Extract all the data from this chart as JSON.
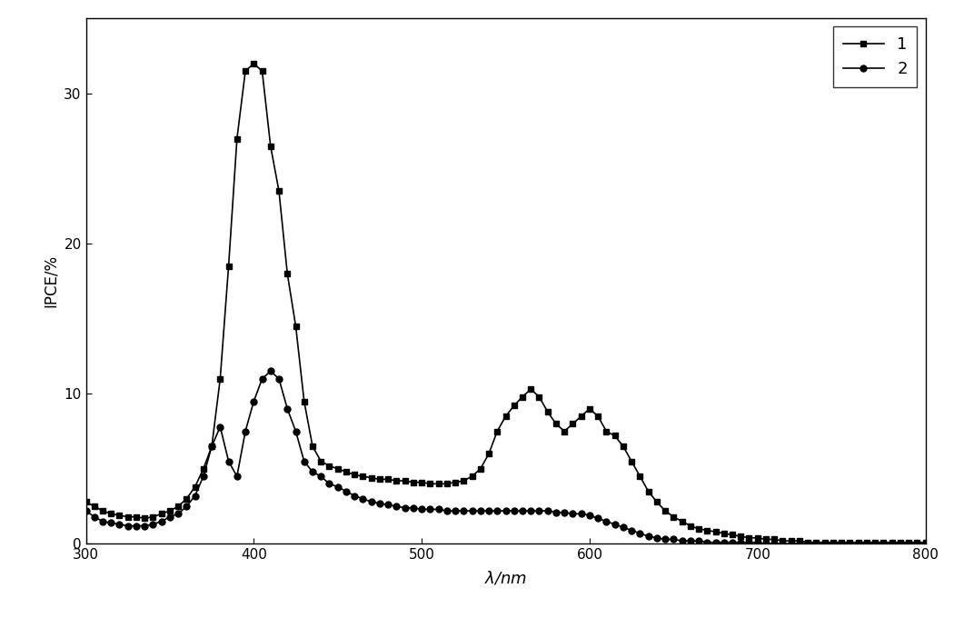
{
  "series1_x": [
    300,
    305,
    310,
    315,
    320,
    325,
    330,
    335,
    340,
    345,
    350,
    355,
    360,
    365,
    370,
    375,
    380,
    385,
    390,
    395,
    400,
    405,
    410,
    415,
    420,
    425,
    430,
    435,
    440,
    445,
    450,
    455,
    460,
    465,
    470,
    475,
    480,
    485,
    490,
    495,
    500,
    505,
    510,
    515,
    520,
    525,
    530,
    535,
    540,
    545,
    550,
    555,
    560,
    565,
    570,
    575,
    580,
    585,
    590,
    595,
    600,
    605,
    610,
    615,
    620,
    625,
    630,
    635,
    640,
    645,
    650,
    655,
    660,
    665,
    670,
    675,
    680,
    685,
    690,
    695,
    700,
    705,
    710,
    715,
    720,
    725,
    730,
    735,
    740,
    745,
    750,
    755,
    760,
    765,
    770,
    775,
    780,
    785,
    790,
    795,
    800
  ],
  "series1_y": [
    2.8,
    2.5,
    2.2,
    2.0,
    1.9,
    1.8,
    1.8,
    1.7,
    1.8,
    2.0,
    2.2,
    2.5,
    3.0,
    3.8,
    5.0,
    6.5,
    11.0,
    18.5,
    27.0,
    31.5,
    32.0,
    31.5,
    26.5,
    23.5,
    18.0,
    14.5,
    9.5,
    6.5,
    5.5,
    5.2,
    5.0,
    4.8,
    4.6,
    4.5,
    4.4,
    4.3,
    4.3,
    4.2,
    4.2,
    4.1,
    4.1,
    4.0,
    4.0,
    4.0,
    4.1,
    4.2,
    4.5,
    5.0,
    6.0,
    7.5,
    8.5,
    9.2,
    9.8,
    10.3,
    9.8,
    8.8,
    8.0,
    7.5,
    8.0,
    8.5,
    9.0,
    8.5,
    7.5,
    7.2,
    6.5,
    5.5,
    4.5,
    3.5,
    2.8,
    2.2,
    1.8,
    1.5,
    1.2,
    1.0,
    0.9,
    0.8,
    0.7,
    0.6,
    0.5,
    0.4,
    0.4,
    0.3,
    0.3,
    0.2,
    0.2,
    0.2,
    0.1,
    0.1,
    0.1,
    0.1,
    0.1,
    0.1,
    0.1,
    0.1,
    0.1,
    0.1,
    0.1,
    0.1,
    0.1,
    0.1,
    0.1
  ],
  "series2_x": [
    300,
    305,
    310,
    315,
    320,
    325,
    330,
    335,
    340,
    345,
    350,
    355,
    360,
    365,
    370,
    375,
    380,
    385,
    390,
    395,
    400,
    405,
    410,
    415,
    420,
    425,
    430,
    435,
    440,
    445,
    450,
    455,
    460,
    465,
    470,
    475,
    480,
    485,
    490,
    495,
    500,
    505,
    510,
    515,
    520,
    525,
    530,
    535,
    540,
    545,
    550,
    555,
    560,
    565,
    570,
    575,
    580,
    585,
    590,
    595,
    600,
    605,
    610,
    615,
    620,
    625,
    630,
    635,
    640,
    645,
    650,
    655,
    660,
    665,
    670,
    675,
    680,
    685,
    690,
    695,
    700,
    705,
    710,
    715,
    720,
    725,
    730,
    735,
    740,
    745,
    750,
    755,
    760,
    765,
    770,
    775,
    780,
    785,
    790,
    795,
    800
  ],
  "series2_y": [
    2.2,
    1.8,
    1.5,
    1.4,
    1.3,
    1.2,
    1.2,
    1.2,
    1.3,
    1.5,
    1.8,
    2.0,
    2.5,
    3.2,
    4.5,
    6.5,
    7.8,
    5.5,
    4.5,
    7.5,
    9.5,
    11.0,
    11.5,
    11.0,
    9.0,
    7.5,
    5.5,
    4.8,
    4.5,
    4.0,
    3.8,
    3.5,
    3.2,
    3.0,
    2.8,
    2.7,
    2.6,
    2.5,
    2.4,
    2.4,
    2.3,
    2.3,
    2.3,
    2.2,
    2.2,
    2.2,
    2.2,
    2.2,
    2.2,
    2.2,
    2.2,
    2.2,
    2.2,
    2.2,
    2.2,
    2.2,
    2.1,
    2.1,
    2.0,
    2.0,
    1.9,
    1.7,
    1.5,
    1.3,
    1.1,
    0.9,
    0.7,
    0.5,
    0.4,
    0.3,
    0.3,
    0.2,
    0.2,
    0.2,
    0.1,
    0.1,
    0.1,
    0.1,
    0.1,
    0.1,
    0.1,
    0.0,
    0.0,
    0.0,
    0.0,
    0.0,
    0.0,
    0.0,
    0.0,
    0.0,
    0.0,
    0.0,
    0.0,
    0.0,
    0.0,
    0.0,
    0.0,
    0.0,
    0.0,
    0.0,
    0.0
  ],
  "xlabel": "$\\lambda$/nm",
  "ylabel": "IPCE/%",
  "xlim": [
    300,
    800
  ],
  "ylim": [
    0,
    35
  ],
  "yticks": [
    0,
    10,
    20,
    30
  ],
  "xticks": [
    300,
    400,
    500,
    600,
    700,
    800
  ],
  "legend_labels": [
    "1",
    "2"
  ],
  "line_color": "#000000",
  "marker1": "s",
  "marker2": "o",
  "markersize1": 5,
  "markersize2": 5,
  "linewidth": 1.2,
  "background_color": "#ffffff",
  "legend_loc": "upper right"
}
